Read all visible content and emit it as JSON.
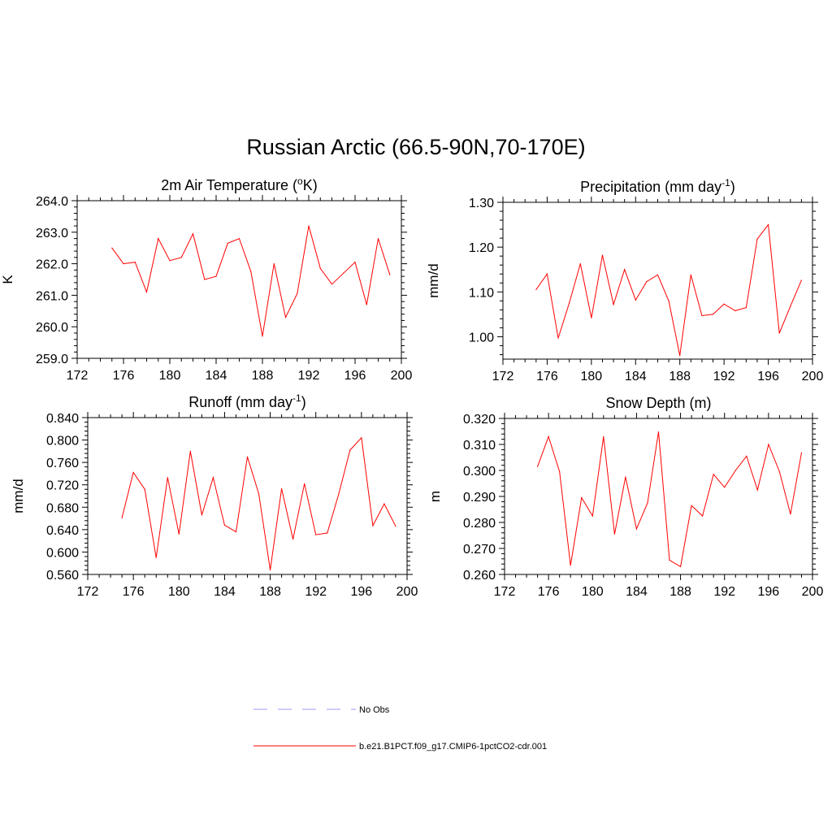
{
  "title": "Russian Arctic (66.5-90N,70-170E)",
  "colors": {
    "model": "#ff0000",
    "obs": "#9999ff",
    "axis": "#000000"
  },
  "legend": [
    {
      "label": "No Obs",
      "style": "dashed",
      "color": "#9999ff"
    },
    {
      "label": "b.e21.B1PCT.f09_g17.CMIP6-1pctCO2-cdr.001",
      "style": "solid",
      "color": "#ff0000"
    }
  ],
  "chart_data": [
    {
      "type": "line",
      "title": "2m Air Temperature (",
      "title_sup": "o",
      "title_after": "K)",
      "ylabel": "K",
      "xlim": [
        172,
        200
      ],
      "ylim": [
        259.0,
        264.0
      ],
      "x_ticks": [
        172,
        176,
        180,
        184,
        188,
        192,
        196,
        200
      ],
      "y_ticks": [
        "259.0",
        "260.0",
        "261.0",
        "262.0",
        "263.0",
        "264.0"
      ],
      "grid": false,
      "series": [
        {
          "x": [
            175,
            176,
            177,
            178,
            179,
            180,
            181,
            182,
            183,
            184,
            185,
            186,
            187,
            188,
            189,
            190,
            191,
            192,
            193,
            194,
            195,
            196,
            197,
            198,
            199
          ],
          "values": [
            262.5,
            262.0,
            262.05,
            261.1,
            262.8,
            262.1,
            262.2,
            262.95,
            261.5,
            261.6,
            262.65,
            262.8,
            261.75,
            259.7,
            262.0,
            260.3,
            261.05,
            263.2,
            261.85,
            261.35,
            261.7,
            262.05,
            260.7,
            262.8,
            261.65
          ]
        }
      ]
    },
    {
      "type": "line",
      "title": "Precipitation (mm day",
      "title_sup": "-1",
      "title_after": ")",
      "ylabel": "mm/d",
      "xlim": [
        172,
        200
      ],
      "ylim": [
        0.95,
        1.3
      ],
      "x_ticks": [
        172,
        176,
        180,
        184,
        188,
        192,
        196,
        200
      ],
      "y_ticks": [
        "1.00",
        "1.10",
        "1.20",
        "1.30"
      ],
      "grid": false,
      "series": [
        {
          "x": [
            175,
            176,
            177,
            178,
            179,
            180,
            181,
            182,
            183,
            184,
            185,
            186,
            187,
            188,
            189,
            190,
            191,
            192,
            193,
            194,
            195,
            196,
            197,
            198,
            199
          ],
          "values": [
            1.105,
            1.14,
            0.997,
            1.075,
            1.163,
            1.042,
            1.182,
            1.072,
            1.15,
            1.082,
            1.123,
            1.138,
            1.08,
            0.958,
            1.138,
            1.047,
            1.05,
            1.073,
            1.058,
            1.065,
            1.218,
            1.25,
            1.008,
            1.068,
            1.126
          ]
        }
      ]
    },
    {
      "type": "line",
      "title": "Runoff (mm day",
      "title_sup": "-1",
      "title_after": ")",
      "ylabel": "mm/d",
      "xlim": [
        172,
        200
      ],
      "ylim": [
        0.56,
        0.84
      ],
      "x_ticks": [
        172,
        176,
        180,
        184,
        188,
        192,
        196,
        200
      ],
      "y_ticks": [
        "0.560",
        "0.600",
        "0.640",
        "0.680",
        "0.720",
        "0.760",
        "0.800",
        "0.840"
      ],
      "grid": false,
      "series": [
        {
          "x": [
            175,
            176,
            177,
            178,
            179,
            180,
            181,
            182,
            183,
            184,
            185,
            186,
            187,
            188,
            189,
            190,
            191,
            192,
            193,
            194,
            195,
            196,
            197,
            198,
            199
          ],
          "values": [
            0.661,
            0.742,
            0.712,
            0.59,
            0.733,
            0.632,
            0.78,
            0.666,
            0.733,
            0.648,
            0.636,
            0.77,
            0.704,
            0.568,
            0.713,
            0.623,
            0.722,
            0.631,
            0.634,
            0.703,
            0.782,
            0.804,
            0.647,
            0.686,
            0.646
          ]
        }
      ]
    },
    {
      "type": "line",
      "title": "Snow Depth (m)",
      "title_sup": "",
      "title_after": "",
      "ylabel": "m",
      "xlim": [
        172,
        200
      ],
      "ylim": [
        0.26,
        0.32
      ],
      "x_ticks": [
        172,
        176,
        180,
        184,
        188,
        192,
        196,
        200
      ],
      "y_ticks": [
        "0.260",
        "0.270",
        "0.280",
        "0.290",
        "0.300",
        "0.310",
        "0.320"
      ],
      "grid": false,
      "series": [
        {
          "x": [
            175,
            176,
            177,
            178,
            179,
            180,
            181,
            182,
            183,
            184,
            185,
            186,
            187,
            188,
            189,
            190,
            191,
            192,
            193,
            194,
            195,
            196,
            197,
            198,
            199
          ],
          "values": [
            0.3015,
            0.313,
            0.2995,
            0.2635,
            0.2895,
            0.2825,
            0.313,
            0.2755,
            0.2975,
            0.2775,
            0.2875,
            0.3148,
            0.2655,
            0.263,
            0.2865,
            0.2825,
            0.2985,
            0.2935,
            0.3,
            0.3055,
            0.2925,
            0.31,
            0.2995,
            0.2832,
            0.3068
          ]
        }
      ]
    }
  ]
}
